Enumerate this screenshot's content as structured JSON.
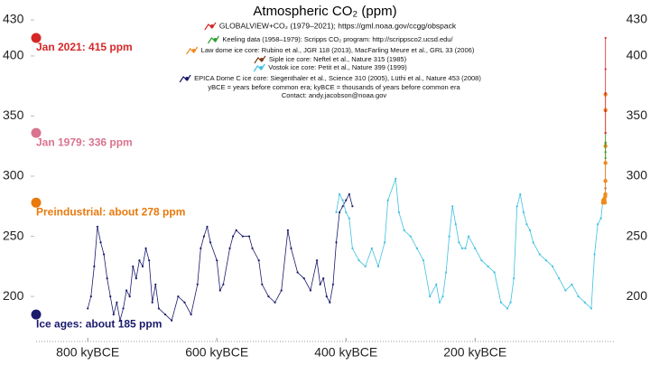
{
  "chart_data": {
    "type": "line",
    "title": "Atmospheric CO₂ (ppm)",
    "xlim": [
      -880,
      15
    ],
    "xticks": [
      {
        "value": -800,
        "label": "800 kyBCE"
      },
      {
        "value": -600,
        "label": "600 kyBCE"
      },
      {
        "value": -400,
        "label": "400 kyBCE"
      },
      {
        "value": -200,
        "label": "200 kyBCE"
      }
    ],
    "ylim": [
      152,
      433
    ],
    "yticks": [
      200,
      250,
      300,
      350,
      400,
      430
    ],
    "grid": false,
    "series": [
      {
        "name": "GLOBALVIEW+CO₂ (1979–2021); https://gml.noaa.gov/ccgg/obspack",
        "color": "#d62728",
        "x": [
          1.979,
          1.99,
          2.0,
          2.01,
          2.021
        ],
        "values": [
          336,
          354,
          369,
          389,
          415
        ]
      },
      {
        "name": "Keeling data (1958–1979): Scripps CO₂ program: http://scrippsco2.ucsd.edu/",
        "color": "#2ca02c",
        "x": [
          1.958,
          1.965,
          1.972,
          1.979
        ],
        "values": [
          315,
          320,
          327,
          336
        ]
      },
      {
        "name": "Law dome ice core:  Rubino et al., JGR 118 (2013), MacFarling Meure et al., GRL 33 (2006)",
        "color": "#f08a1c",
        "x": [
          -2,
          -1.5,
          -1,
          -0.5,
          0,
          0.5,
          1,
          1.5,
          1.8,
          1.9,
          1.95,
          1.97,
          1.99,
          2.0
        ],
        "values": [
          278,
          280,
          279,
          280,
          281,
          280,
          278,
          283,
          285,
          296,
          311,
          325,
          355,
          368
        ]
      },
      {
        "name": "Siple ice core:  Neftel et al., Nature 315 (1985)",
        "color": "#7b3f1a",
        "x": [
          1.7,
          1.8,
          1.85,
          1.9,
          1.95,
          1.97
        ],
        "values": [
          279,
          283,
          290,
          297,
          312,
          328
        ]
      },
      {
        "name": "Vostok ice core:  Petit et al., Nature 399 (1999)",
        "color": "#3ec1e0",
        "x": [
          -415,
          -410,
          -405,
          -400,
          -395,
          -390,
          -380,
          -370,
          -360,
          -350,
          -340,
          -335,
          -323,
          -318,
          -310,
          -300,
          -290,
          -280,
          -270,
          -260,
          -255,
          -250,
          -245,
          -240,
          -235,
          -230,
          -225,
          -220,
          -215,
          -210,
          -200,
          -190,
          -180,
          -170,
          -160,
          -150,
          -145,
          -140,
          -135,
          -130,
          -125,
          -120,
          -115,
          -110,
          -100,
          -90,
          -80,
          -70,
          -60,
          -50,
          -40,
          -30,
          -20,
          -15,
          -10,
          -5,
          -2
        ],
        "values": [
          270,
          285,
          280,
          270,
          265,
          240,
          230,
          225,
          240,
          225,
          245,
          280,
          298,
          270,
          255,
          250,
          240,
          230,
          200,
          210,
          195,
          200,
          220,
          250,
          275,
          260,
          245,
          240,
          240,
          250,
          240,
          230,
          225,
          220,
          195,
          190,
          195,
          215,
          275,
          285,
          270,
          260,
          255,
          245,
          235,
          230,
          225,
          215,
          205,
          210,
          200,
          195,
          190,
          235,
          260,
          265,
          280
        ]
      },
      {
        "name": "EPICA Dome C ice core:  Siegenthaler et al., Science 310 (2005), Lüthi et al., Nature 453 (2008)",
        "color": "#1a1a6e",
        "x": [
          -800,
          -795,
          -790,
          -785,
          -780,
          -775,
          -770,
          -765,
          -760,
          -755,
          -750,
          -745,
          -740,
          -735,
          -730,
          -725,
          -720,
          -715,
          -710,
          -705,
          -700,
          -695,
          -690,
          -680,
          -670,
          -660,
          -650,
          -640,
          -630,
          -625,
          -620,
          -615,
          -610,
          -600,
          -595,
          -590,
          -580,
          -575,
          -570,
          -560,
          -550,
          -545,
          -535,
          -530,
          -520,
          -510,
          -500,
          -490,
          -485,
          -475,
          -465,
          -455,
          -445,
          -440,
          -435,
          -430,
          -425,
          -420,
          -415,
          -410,
          -405,
          -400,
          -395,
          -390
        ],
        "values": [
          190,
          200,
          225,
          258,
          245,
          235,
          215,
          200,
          185,
          195,
          180,
          190,
          205,
          200,
          225,
          215,
          230,
          225,
          240,
          230,
          195,
          210,
          190,
          185,
          180,
          200,
          195,
          185,
          210,
          240,
          250,
          258,
          245,
          230,
          205,
          210,
          240,
          250,
          255,
          250,
          250,
          240,
          230,
          210,
          200,
          195,
          205,
          255,
          240,
          220,
          215,
          205,
          230,
          210,
          215,
          200,
          195,
          210,
          245,
          270,
          275,
          280,
          285,
          275
        ]
      }
    ],
    "notes": [
      "yBCE = years before common era; kyBCE = thousands of years before common era",
      "Contact: andy.jacobson@noaa.gov"
    ],
    "annotations": [
      {
        "text": "Jan 2021: 415 ppm",
        "value": 415,
        "color": "#d62728"
      },
      {
        "text": "Jan 1979: 336 ppm",
        "value": 336,
        "color": "#d9738f"
      },
      {
        "text": "Preindustrial: about 278 ppm",
        "value": 278,
        "color": "#e8790c"
      },
      {
        "text": "Ice ages: about 185 ppm",
        "value": 185,
        "color": "#1a1a6e"
      }
    ]
  }
}
